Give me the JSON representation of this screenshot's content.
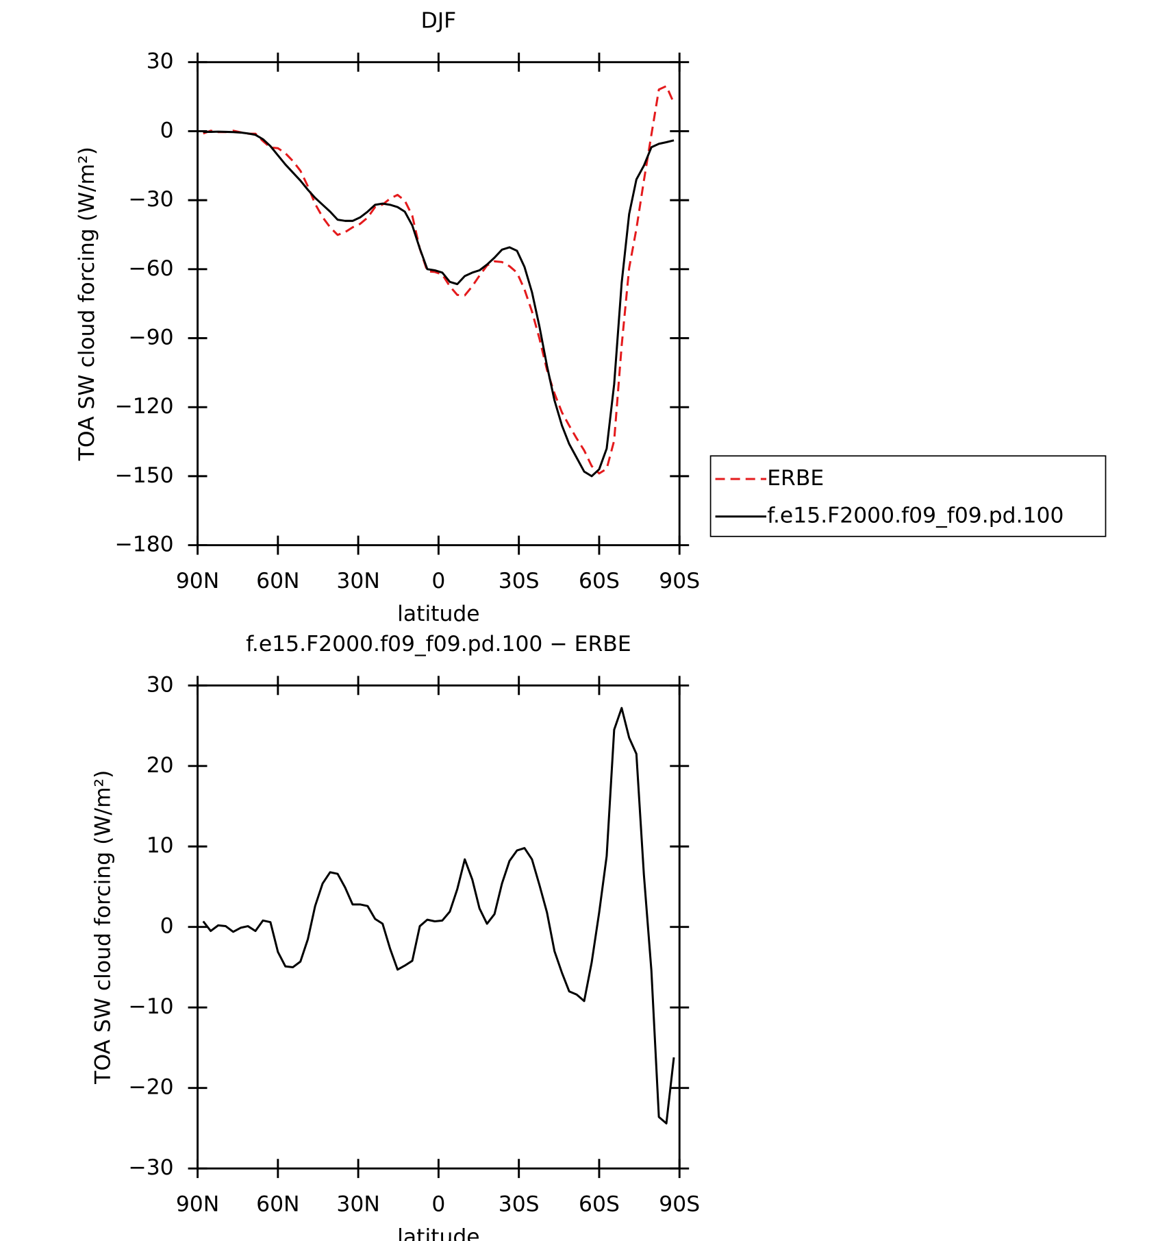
{
  "chart_data": [
    {
      "type": "line",
      "title": "DJF",
      "xlabel": "latitude",
      "ylabel": "TOA SW cloud forcing (W/m²)",
      "x": [
        87.9,
        85.1,
        82.3,
        79.5,
        76.7,
        73.9,
        71.2,
        68.4,
        65.6,
        62.8,
        60,
        57.2,
        54.4,
        51.6,
        48.8,
        46.1,
        43.3,
        40.5,
        37.7,
        34.9,
        32.1,
        29.3,
        26.5,
        23.7,
        20.9,
        18.1,
        15.3,
        12.6,
        9.8,
        7,
        4.2,
        1.4,
        -1.4,
        -4.2,
        -7,
        -9.8,
        -12.6,
        -15.3,
        -18.1,
        -20.9,
        -23.7,
        -26.5,
        -29.3,
        -32.1,
        -34.9,
        -37.7,
        -40.5,
        -43.3,
        -46.1,
        -48.8,
        -51.6,
        -54.4,
        -57.2,
        -60,
        -62.8,
        -65.6,
        -68.4,
        -71.2,
        -73.9,
        -76.7,
        -79.5,
        -82.3,
        -85.1,
        -87.9
      ],
      "series": [
        {
          "name": "ERBE",
          "color": "#e41a1c",
          "line_style": "dashed",
          "values": [
            -1.0,
            0.2,
            -0.4,
            -0.4,
            0.2,
            -0.5,
            -1.1,
            -1.1,
            -4.3,
            -7.1,
            -7.4,
            -9.6,
            -13,
            -17.2,
            -24,
            -31.6,
            -37.4,
            -41.8,
            -45.1,
            -43.9,
            -41.8,
            -40.3,
            -37.6,
            -33,
            -31.9,
            -29.3,
            -27.7,
            -30.2,
            -36.8,
            -51.1,
            -60.9,
            -61.2,
            -62.3,
            -67.4,
            -71.2,
            -71.4,
            -67.4,
            -62.8,
            -58.4,
            -56.6,
            -56.9,
            -58.7,
            -61.5,
            -68.8,
            -78.4,
            -90.2,
            -103.8,
            -114,
            -122.3,
            -128,
            -133.6,
            -138.8,
            -145.6,
            -148.8,
            -146.8,
            -134.5,
            -93.2,
            -59.5,
            -42.5,
            -21.5,
            -1.6,
            18.1,
            19.6,
            12.2
          ]
        },
        {
          "name": "f.e15.F2000.f09_f09.pd.100",
          "color": "#000000",
          "line_style": "solid",
          "values": [
            -0.3,
            -0.3,
            -0.2,
            -0.3,
            -0.4,
            -0.6,
            -1.0,
            -1.6,
            -3.5,
            -6.5,
            -10.5,
            -14.5,
            -18,
            -21.5,
            -25.5,
            -29,
            -32,
            -35,
            -38.5,
            -39,
            -39,
            -37.5,
            -35,
            -32,
            -31.5,
            -32,
            -33,
            -35,
            -41,
            -51,
            -60,
            -60.5,
            -61.5,
            -65.5,
            -66.5,
            -63,
            -61.5,
            -60.5,
            -58,
            -55,
            -51.5,
            -50.5,
            -52,
            -59,
            -70,
            -85,
            -102,
            -117,
            -128,
            -136,
            -142,
            -148,
            -150,
            -147,
            -138,
            -110,
            -66,
            -36,
            -21,
            -15,
            -7,
            -5.5,
            -4.8,
            -4
          ]
        }
      ],
      "xlim": [
        90,
        -90
      ],
      "xticks": [
        {
          "value": 90,
          "label": "90N"
        },
        {
          "value": 60,
          "label": "60N"
        },
        {
          "value": 30,
          "label": "30N"
        },
        0,
        {
          "value": -30,
          "label": "30S"
        },
        {
          "value": -60,
          "label": "60S"
        },
        {
          "value": -90,
          "label": "90S"
        }
      ],
      "ylim": [
        -180,
        30
      ],
      "yticks": [
        {
          "value": -180,
          "label": "−180"
        },
        {
          "value": -150,
          "label": "−150"
        },
        {
          "value": -120,
          "label": "−120"
        },
        {
          "value": -90,
          "label": "−90"
        },
        {
          "value": -60,
          "label": "−60"
        },
        {
          "value": -30,
          "label": "−30"
        },
        0,
        30
      ],
      "legend": "right"
    },
    {
      "type": "line",
      "title": "f.e15.F2000.f09_f09.pd.100 − ERBE",
      "xlabel": "latitude",
      "ylabel": "TOA SW cloud forcing (W/m²)",
      "x": [
        87.9,
        85.1,
        82.3,
        79.5,
        76.7,
        73.9,
        71.2,
        68.4,
        65.6,
        62.8,
        60,
        57.2,
        54.4,
        51.6,
        48.8,
        46.1,
        43.3,
        40.5,
        37.7,
        34.9,
        32.1,
        29.3,
        26.5,
        23.7,
        20.9,
        18.1,
        15.3,
        12.6,
        9.8,
        7,
        4.2,
        1.4,
        -1.4,
        -4.2,
        -7,
        -9.8,
        -12.6,
        -15.3,
        -18.1,
        -20.9,
        -23.7,
        -26.5,
        -29.3,
        -32.1,
        -34.9,
        -37.7,
        -40.5,
        -43.3,
        -46.1,
        -48.8,
        -51.6,
        -54.4,
        -57.2,
        -60,
        -62.8,
        -65.6,
        -68.4,
        -71.2,
        -73.9,
        -76.7,
        -79.5,
        -82.3,
        -85.1,
        -87.9
      ],
      "color": "#000000",
      "values": [
        0.7,
        -0.5,
        0.2,
        0.1,
        -0.6,
        -0.1,
        0.1,
        -0.5,
        0.8,
        0.6,
        -3.1,
        -4.9,
        -5.0,
        -4.3,
        -1.5,
        2.6,
        5.4,
        6.8,
        6.6,
        4.9,
        2.8,
        2.8,
        2.6,
        1.0,
        0.4,
        -2.7,
        -5.3,
        -4.8,
        -4.2,
        0.1,
        0.9,
        0.7,
        0.8,
        1.9,
        4.7,
        8.4,
        5.9,
        2.3,
        0.4,
        1.6,
        5.4,
        8.2,
        9.5,
        9.8,
        8.4,
        5.2,
        1.8,
        -3.0,
        -5.7,
        -8.0,
        -8.4,
        -9.2,
        -4.4,
        1.8,
        8.8,
        24.5,
        27.2,
        23.5,
        21.5,
        6.5,
        -5.4,
        -23.6,
        -24.4,
        -16.2
      ],
      "xlim": [
        90,
        -90
      ],
      "xticks": [
        {
          "value": 90,
          "label": "90N"
        },
        {
          "value": 60,
          "label": "60N"
        },
        {
          "value": 30,
          "label": "30N"
        },
        0,
        {
          "value": -30,
          "label": "30S"
        },
        {
          "value": -60,
          "label": "60S"
        },
        {
          "value": -90,
          "label": "90S"
        }
      ],
      "ylim": [
        -30,
        30
      ],
      "yticks": [
        {
          "value": -30,
          "label": "−30"
        },
        {
          "value": -20,
          "label": "−20"
        },
        {
          "value": -10,
          "label": "−10"
        },
        0,
        10,
        20,
        30
      ]
    }
  ]
}
